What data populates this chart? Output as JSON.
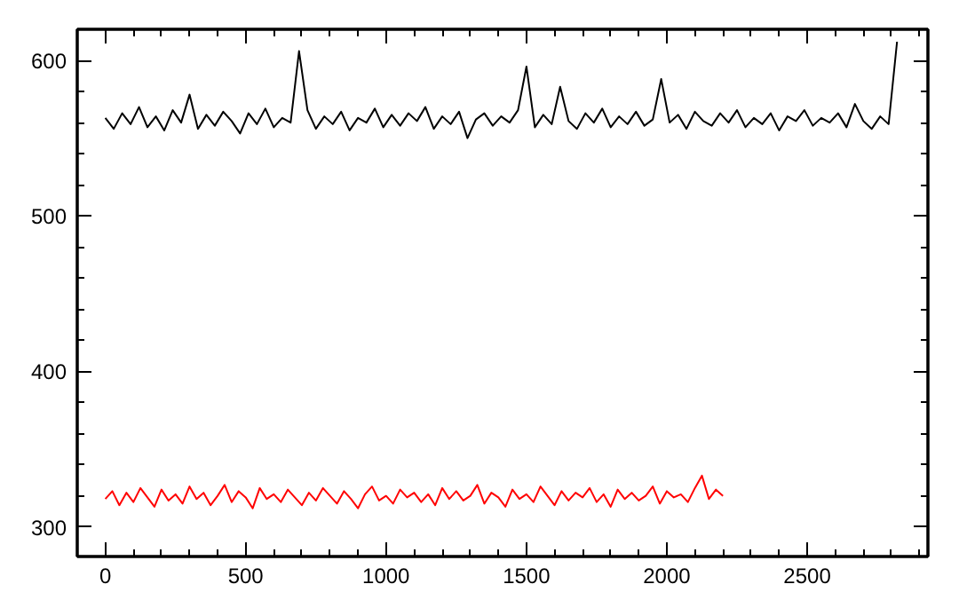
{
  "chart_data": {
    "type": "line",
    "xlim": [
      -100,
      2930
    ],
    "ylim": [
      281,
      620
    ],
    "xticks": [
      {
        "value": -100,
        "label": null
      },
      0,
      {
        "value": 100,
        "label": null
      },
      {
        "value": 200,
        "label": null
      },
      {
        "value": 300,
        "label": null
      },
      {
        "value": 400,
        "label": null
      },
      500,
      {
        "value": 600,
        "label": null
      },
      {
        "value": 700,
        "label": null
      },
      {
        "value": 800,
        "label": null
      },
      {
        "value": 900,
        "label": null
      },
      1000,
      {
        "value": 1100,
        "label": null
      },
      {
        "value": 1200,
        "label": null
      },
      {
        "value": 1300,
        "label": null
      },
      {
        "value": 1400,
        "label": null
      },
      1500,
      {
        "value": 1600,
        "label": null
      },
      {
        "value": 1700,
        "label": null
      },
      {
        "value": 1800,
        "label": null
      },
      {
        "value": 1900,
        "label": null
      },
      2000,
      {
        "value": 2100,
        "label": null
      },
      {
        "value": 2200,
        "label": null
      },
      {
        "value": 2300,
        "label": null
      },
      {
        "value": 2400,
        "label": null
      },
      2500,
      {
        "value": 2600,
        "label": null
      },
      {
        "value": 2700,
        "label": null
      },
      {
        "value": 2800,
        "label": null
      },
      {
        "value": 2900,
        "label": null
      }
    ],
    "yticks": [
      300,
      {
        "value": 320,
        "label": null
      },
      {
        "value": 340,
        "label": null
      },
      {
        "value": 360,
        "label": null
      },
      {
        "value": 380,
        "label": null
      },
      400,
      {
        "value": 420,
        "label": null
      },
      {
        "value": 440,
        "label": null
      },
      {
        "value": 460,
        "label": null
      },
      {
        "value": 480,
        "label": null
      },
      500,
      {
        "value": 520,
        "label": null
      },
      {
        "value": 540,
        "label": null
      },
      {
        "value": 560,
        "label": null
      },
      {
        "value": 580,
        "label": null
      },
      600
    ],
    "grid": false,
    "marker": "none",
    "line_style": "solid",
    "series": [
      {
        "color": "#000000",
        "x": [
          0,
          30,
          60,
          90,
          120,
          150,
          180,
          210,
          240,
          270,
          300,
          330,
          360,
          390,
          420,
          450,
          480,
          510,
          540,
          570,
          600,
          630,
          660,
          690,
          720,
          750,
          780,
          810,
          840,
          870,
          900,
          930,
          960,
          990,
          1020,
          1050,
          1080,
          1110,
          1140,
          1170,
          1200,
          1230,
          1260,
          1290,
          1320,
          1350,
          1380,
          1410,
          1440,
          1470,
          1500,
          1530,
          1560,
          1590,
          1620,
          1650,
          1680,
          1710,
          1740,
          1770,
          1800,
          1830,
          1860,
          1890,
          1920,
          1950,
          1980,
          2010,
          2040,
          2070,
          2100,
          2130,
          2160,
          2190,
          2220,
          2250,
          2280,
          2310,
          2340,
          2370,
          2400,
          2430,
          2460,
          2490,
          2520,
          2550,
          2580,
          2610,
          2640,
          2670,
          2700,
          2730,
          2760,
          2790,
          2820
        ],
        "values": [
          563,
          556,
          566,
          559,
          570,
          557,
          564,
          555,
          568,
          560,
          578,
          556,
          565,
          558,
          567,
          561,
          553,
          566,
          559,
          569,
          557,
          563,
          560,
          606,
          568,
          556,
          564,
          559,
          567,
          555,
          563,
          560,
          569,
          557,
          565,
          558,
          566,
          561,
          570,
          556,
          564,
          559,
          567,
          550,
          562,
          566,
          558,
          564,
          560,
          568,
          596,
          557,
          565,
          559,
          583,
          561,
          556,
          566,
          560,
          569,
          557,
          564,
          559,
          567,
          558,
          562,
          588,
          560,
          565,
          556,
          567,
          561,
          558,
          566,
          560,
          568,
          557,
          563,
          559,
          566,
          555,
          564,
          561,
          568,
          558,
          563,
          560,
          566,
          557,
          572,
          561,
          556,
          564,
          559,
          612
        ]
      },
      {
        "color": "#ff0000",
        "x": [
          0,
          25,
          50,
          75,
          100,
          125,
          150,
          175,
          200,
          225,
          250,
          275,
          300,
          325,
          350,
          375,
          400,
          425,
          450,
          475,
          500,
          525,
          550,
          575,
          600,
          625,
          650,
          675,
          700,
          725,
          750,
          775,
          800,
          825,
          850,
          875,
          900,
          925,
          950,
          975,
          1000,
          1025,
          1050,
          1075,
          1100,
          1125,
          1150,
          1175,
          1200,
          1225,
          1250,
          1275,
          1300,
          1325,
          1350,
          1375,
          1400,
          1425,
          1450,
          1475,
          1500,
          1525,
          1550,
          1575,
          1600,
          1625,
          1650,
          1675,
          1700,
          1725,
          1750,
          1775,
          1800,
          1825,
          1850,
          1875,
          1900,
          1925,
          1950,
          1975,
          2000,
          2025,
          2050,
          2075,
          2100,
          2125,
          2150,
          2175,
          2200
        ],
        "values": [
          318,
          323,
          314,
          322,
          316,
          325,
          319,
          313,
          324,
          317,
          321,
          315,
          326,
          318,
          322,
          314,
          320,
          327,
          316,
          323,
          319,
          312,
          325,
          318,
          321,
          316,
          324,
          319,
          314,
          322,
          317,
          325,
          320,
          315,
          323,
          318,
          312,
          321,
          326,
          317,
          320,
          315,
          324,
          319,
          322,
          316,
          321,
          314,
          325,
          318,
          323,
          317,
          320,
          327,
          315,
          322,
          319,
          313,
          324,
          318,
          321,
          316,
          326,
          320,
          314,
          323,
          317,
          322,
          319,
          325,
          316,
          321,
          313,
          324,
          318,
          322,
          317,
          320,
          326,
          315,
          323,
          319,
          321,
          316,
          325,
          333,
          318,
          324,
          320
        ]
      }
    ]
  }
}
